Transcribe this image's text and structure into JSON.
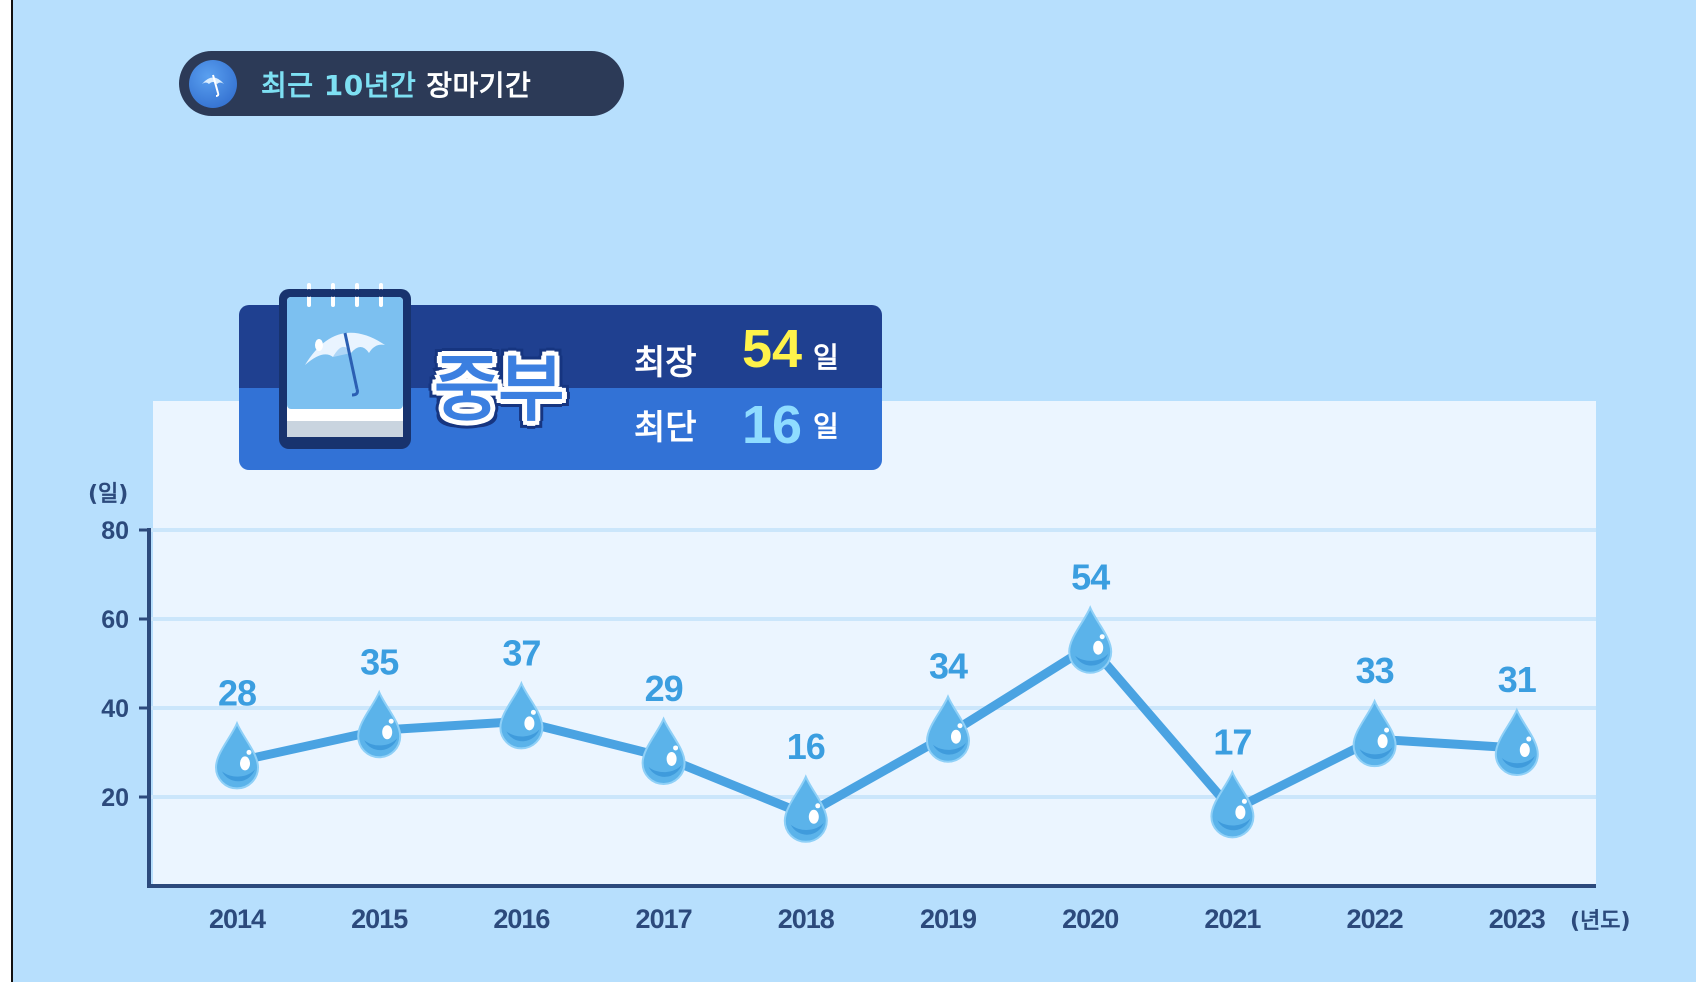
{
  "title": {
    "part1": "최근 10년간",
    "part2": "장마기간"
  },
  "summary": {
    "region": "중부",
    "longest_label": "최장",
    "longest_value": "54",
    "shortest_label": "최단",
    "shortest_value": "16",
    "unit": "일"
  },
  "colors": {
    "background": "#b7dffd",
    "plot_area": "#ebf5ff",
    "line": "#4aa3e2",
    "value_label": "#3b9ee0",
    "axis": "#2c4a7c",
    "longest": "#fff34a",
    "shortest": "#8fdcff"
  },
  "chart_data": {
    "type": "line",
    "x": [
      "2014",
      "2015",
      "2016",
      "2017",
      "2018",
      "2019",
      "2020",
      "2021",
      "2022",
      "2023"
    ],
    "series": [
      {
        "values": [
          28,
          35,
          37,
          29,
          16,
          34,
          54,
          17,
          33,
          31
        ]
      }
    ],
    "ylabel": "(일)",
    "xlabel": "(년도)",
    "yticks": [
      20,
      40,
      60,
      80
    ],
    "ylim": [
      0,
      80
    ],
    "grid": true,
    "marker": "water-drop"
  }
}
